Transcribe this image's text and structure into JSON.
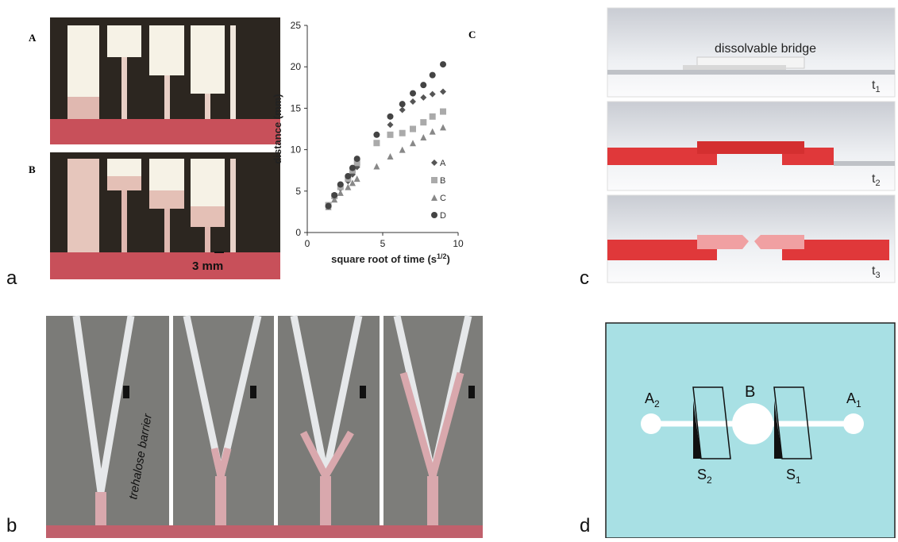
{
  "panels": {
    "a": {
      "label": "a",
      "photo_labels": [
        "A",
        "B"
      ],
      "scale_bar": "3 mm"
    },
    "b": {
      "label": "b",
      "barrier": "trehalose  barrier"
    },
    "c": {
      "label": "c",
      "bridge": "dissolvable bridge",
      "times": [
        {
          "base": "t",
          "sub": "1"
        },
        {
          "base": "t",
          "sub": "2"
        },
        {
          "base": "t",
          "sub": "3"
        }
      ]
    },
    "d": {
      "label": "d",
      "nodes": [
        {
          "base": "A",
          "sub": "2"
        },
        {
          "base": "B"
        },
        {
          "base": "A",
          "sub": "1"
        }
      ],
      "switches": [
        {
          "base": "S",
          "sub": "2"
        },
        {
          "base": "S",
          "sub": "1"
        }
      ]
    }
  },
  "chart_data": {
    "type": "scatter",
    "corner_label": "C",
    "xlabel": [
      "square root of time (s",
      "1/2",
      ")"
    ],
    "ylabel": "distance (mm)",
    "x": [
      1.4,
      1.8,
      2.2,
      2.7,
      3.0,
      3.3,
      4.6,
      5.5,
      6.3,
      7.0,
      7.7,
      8.3,
      9.0
    ],
    "xlim": [
      0,
      10
    ],
    "xticks": [
      0,
      5,
      10
    ],
    "ylim": [
      0,
      25
    ],
    "yticks": [
      0,
      5,
      10,
      15,
      20,
      25
    ],
    "legend": "right",
    "series": [
      {
        "name": "A",
        "color": "#555555",
        "marker": "diamond",
        "values": [
          3.2,
          4.3,
          5.3,
          6.2,
          7.0,
          7.9,
          null,
          13.0,
          14.8,
          15.8,
          16.3,
          16.7,
          17.0
        ]
      },
      {
        "name": "B",
        "color": "#aaaaaa",
        "marker": "square",
        "values": [
          3.3,
          4.4,
          5.5,
          6.5,
          7.5,
          8.4,
          10.8,
          11.8,
          12.0,
          12.5,
          13.3,
          14.0,
          14.6
        ]
      },
      {
        "name": "C",
        "color": "#888888",
        "marker": "triangle",
        "values": [
          3.1,
          4.0,
          4.8,
          5.5,
          6.0,
          6.5,
          8.0,
          9.2,
          10.0,
          10.8,
          11.5,
          12.2,
          12.7
        ]
      },
      {
        "name": "D",
        "color": "#444444",
        "marker": "circle",
        "values": [
          3.2,
          4.5,
          5.8,
          6.8,
          7.8,
          8.9,
          11.8,
          14.0,
          15.5,
          16.8,
          17.8,
          19.0,
          20.3
        ]
      }
    ]
  }
}
